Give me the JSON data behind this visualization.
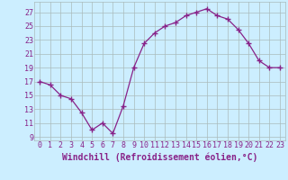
{
  "x": [
    0,
    1,
    2,
    3,
    4,
    5,
    6,
    7,
    8,
    9,
    10,
    11,
    12,
    13,
    14,
    15,
    16,
    17,
    18,
    19,
    20,
    21,
    22,
    23
  ],
  "y": [
    17.0,
    16.5,
    15.0,
    14.5,
    12.5,
    10.0,
    11.0,
    9.5,
    13.5,
    19.0,
    22.5,
    24.0,
    25.0,
    25.5,
    26.5,
    27.0,
    27.5,
    26.5,
    26.0,
    24.5,
    22.5,
    20.0,
    19.0,
    19.0
  ],
  "color": "#882288",
  "marker": "+",
  "markersize": 4,
  "linewidth": 0.9,
  "xlabel": "Windchill (Refroidissement éolien,°C)",
  "xlabel_fontsize": 7,
  "xtick_labels": [
    "0",
    "1",
    "2",
    "3",
    "4",
    "5",
    "6",
    "7",
    "8",
    "9",
    "10",
    "11",
    "12",
    "13",
    "14",
    "15",
    "16",
    "17",
    "18",
    "19",
    "20",
    "21",
    "22",
    "23"
  ],
  "ytick_values": [
    9,
    11,
    13,
    15,
    17,
    19,
    21,
    23,
    25,
    27
  ],
  "ylim": [
    8.5,
    28.5
  ],
  "xlim": [
    -0.5,
    23.5
  ],
  "bg_color": "#cceeff",
  "grid_color": "#aabbbb",
  "tick_fontsize": 6
}
